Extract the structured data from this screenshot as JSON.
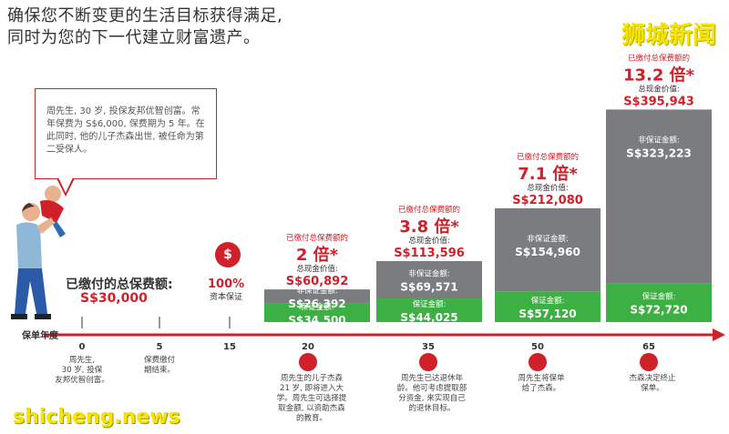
{
  "headline": {
    "line1": "确保您不断变更的生活目标获得满足,",
    "line2": "同时为您的下一代建立财富遗产。"
  },
  "brand": "狮城新闻",
  "watermark": "shicheng.news",
  "callout": {
    "text": "周先生, 30 岁, 投保友邦优智创富。常年保费为 S$6,000, 保费期为 5 年。在此同时, 他的儿子杰森出世, 被任命为第二受保人。"
  },
  "paid_total": {
    "label": "已缴付的总保费额:",
    "value": "S$30,000"
  },
  "guarantee": {
    "pct": "100%",
    "label": "资本保证",
    "icon": "money-bag-icon"
  },
  "timeline": {
    "label": "保单年度",
    "ticks": [
      {
        "year": "0",
        "note": "周先生,\n30 岁, 投保\n友邦优智创富。"
      },
      {
        "year": "5",
        "note": "保费缴付\n期结束。"
      },
      {
        "year": "15",
        "note": ""
      },
      {
        "year": "20",
        "note": "周先生的儿子杰森\n21 岁, 即将进入大\n学。周先生可选择提\n取金额, 以资助杰森\n的教育。",
        "icon": "graduation-cap-icon"
      },
      {
        "year": "35",
        "note": "周先生已达退休年\n龄。他可考虑提取部\n分资金, 来实现自己\n的退休目标。",
        "icon": "coins-icon"
      },
      {
        "year": "50",
        "note": "周先生将保单\n给了杰森。",
        "icon": "compass-icon"
      },
      {
        "year": "65",
        "note": "杰森决定终止\n保单。",
        "icon": "flag-icon"
      }
    ]
  },
  "colors": {
    "accent": "#d0212a",
    "guaranteed": "#3cb043",
    "non_guaranteed": "#7a7c80"
  },
  "chart_data": {
    "type": "bar",
    "stacked": true,
    "categories": [
      "20",
      "35",
      "50",
      "65"
    ],
    "top_label": "已缴付总保费额的",
    "multiples": [
      "2 倍*",
      "3.8 倍*",
      "7.1 倍*",
      "13.2 倍*"
    ],
    "total_label": "总现金价值:",
    "totals": [
      60892,
      113596,
      212080,
      395943
    ],
    "totals_text": [
      "S$60,892",
      "S$113,596",
      "S$212,080",
      "S$395,943"
    ],
    "series": [
      {
        "name": "保证金额:",
        "values": [
          34500,
          44025,
          57120,
          72720
        ],
        "values_text": [
          "S$34,500",
          "S$44,025",
          "S$57,120",
          "S$72,720"
        ]
      },
      {
        "name": "非保证金额:",
        "values": [
          26392,
          69571,
          154960,
          323223
        ],
        "values_text": [
          "S$26,392",
          "S$69,571",
          "S$154,960",
          "S$323,223"
        ]
      }
    ],
    "axis_visible": false,
    "ylim": [
      0,
      400000
    ]
  }
}
